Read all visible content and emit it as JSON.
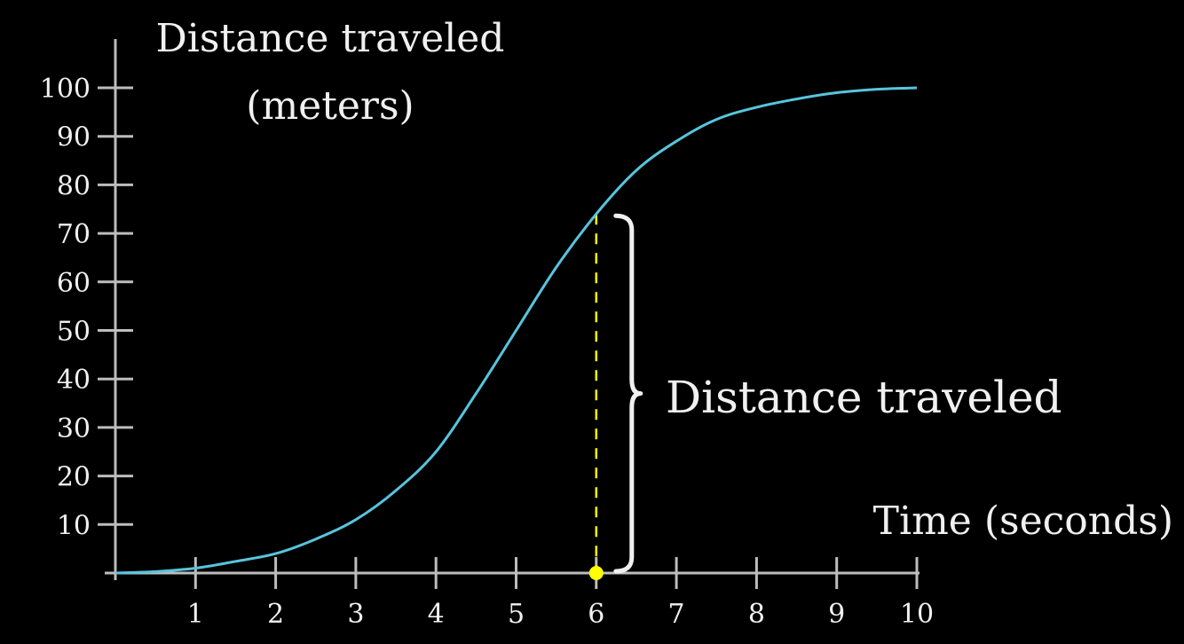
{
  "colors": {
    "background": "#000000",
    "axis": "#bdbdbd",
    "curve": "#58c4dd",
    "marker": "#ffff00",
    "text": "#f0f0f0"
  },
  "labels": {
    "y_title_line1": "Distance traveled",
    "y_title_line2": "(meters)",
    "x_title": "Time (seconds)",
    "brace_label": "Distance traveled"
  },
  "chart_data": {
    "type": "line",
    "xlabel": "Time (seconds)",
    "ylabel": "Distance traveled (meters)",
    "xlim": [
      0,
      10
    ],
    "ylim": [
      0,
      100
    ],
    "xticks": [
      1,
      2,
      3,
      4,
      5,
      6,
      7,
      8,
      9,
      10
    ],
    "yticks": [
      10,
      20,
      30,
      40,
      50,
      60,
      70,
      80,
      90,
      100
    ],
    "grid": false,
    "series": [
      {
        "x": [
          0,
          0.5,
          1,
          1.5,
          2,
          2.5,
          3,
          3.5,
          4,
          4.5,
          5,
          5.5,
          6,
          6.5,
          7,
          7.5,
          8,
          8.5,
          9,
          9.5,
          10
        ],
        "y": [
          0,
          0.3,
          1,
          2.4,
          4,
          7,
          11,
          17,
          25,
          37,
          50,
          63,
          74,
          83,
          89,
          93.5,
          96,
          97.7,
          99,
          99.7,
          100
        ]
      }
    ],
    "annotations": [
      {
        "kind": "vertical-dashed-line",
        "x": 6,
        "y_from": 0,
        "y_to": 74
      },
      {
        "kind": "point",
        "x": 6,
        "y": 0
      },
      {
        "kind": "brace",
        "x": 6,
        "y_from": 0,
        "y_to": 74,
        "label": "Distance traveled"
      }
    ]
  }
}
